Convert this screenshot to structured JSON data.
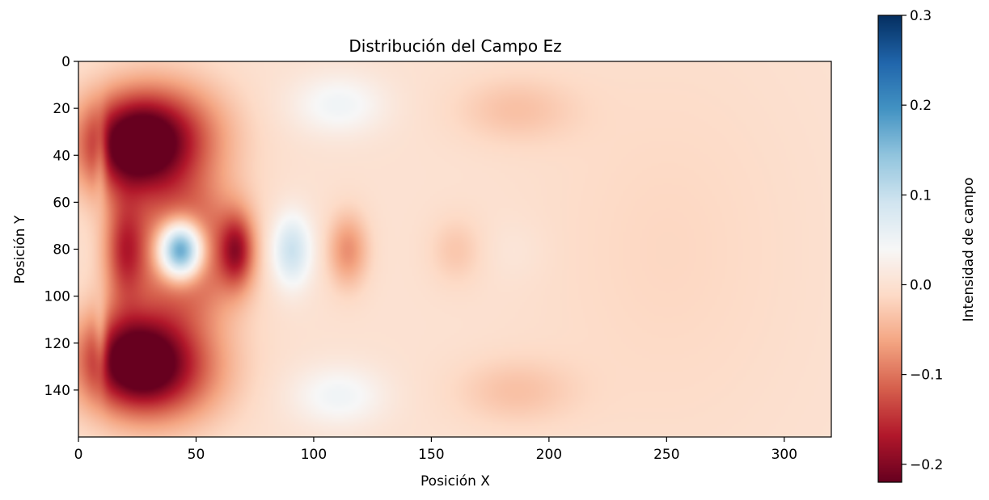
{
  "chart_data": {
    "type": "heatmap",
    "title": "Distribución del Campo Ez",
    "xlabel": "Posición X",
    "ylabel": "Posición Y",
    "colorbar_label": "Intensidad de campo",
    "colormap": "RdBu",
    "xlim": [
      0,
      320
    ],
    "ylim": [
      160,
      0
    ],
    "y_axis_inverted": true,
    "x_ticks": [
      0,
      50,
      100,
      150,
      200,
      250,
      300
    ],
    "x_tick_labels": [
      "0",
      "50",
      "100",
      "150",
      "200",
      "250",
      "300"
    ],
    "y_ticks": [
      0,
      20,
      40,
      60,
      80,
      100,
      120,
      140
    ],
    "y_tick_labels": [
      "0",
      "20",
      "40",
      "60",
      "80",
      "100",
      "120",
      "140"
    ],
    "colorbar_range": [
      -0.22,
      0.3
    ],
    "colorbar_ticks": [
      -0.2,
      -0.1,
      0.0,
      0.1,
      0.2,
      0.3
    ],
    "colorbar_tick_labels": [
      "−0.2",
      "−0.1",
      "0.0",
      "0.1",
      "0.2",
      "0.3"
    ],
    "background_value": 0.0,
    "features": [
      {
        "shape": "gaussian",
        "x": 22,
        "y": 35,
        "value": -0.22,
        "sx": 16,
        "sy": 15
      },
      {
        "shape": "gaussian",
        "x": 22,
        "y": 127,
        "value": -0.22,
        "sx": 16,
        "sy": 15
      },
      {
        "shape": "gaussian",
        "x": 40,
        "y": 30,
        "value": -0.1,
        "sx": 18,
        "sy": 16
      },
      {
        "shape": "gaussian",
        "x": 40,
        "y": 132,
        "value": -0.1,
        "sx": 18,
        "sy": 16
      },
      {
        "shape": "gaussian",
        "x": 43,
        "y": 80,
        "value": 0.34,
        "sx": 7,
        "sy": 9
      },
      {
        "shape": "gaussian",
        "x": 45,
        "y": 80,
        "value": -0.17,
        "sx": 16,
        "sy": 20
      },
      {
        "shape": "gaussian",
        "x": 19,
        "y": 80,
        "value": -0.12,
        "sx": 6,
        "sy": 16
      },
      {
        "shape": "gaussian",
        "x": 67,
        "y": 80,
        "value": -0.13,
        "sx": 5,
        "sy": 11
      },
      {
        "shape": "gaussian",
        "x": 90,
        "y": 80,
        "value": 0.1,
        "sx": 6,
        "sy": 11
      },
      {
        "shape": "gaussian",
        "x": 114,
        "y": 80,
        "value": -0.08,
        "sx": 6,
        "sy": 11
      },
      {
        "shape": "gaussian",
        "x": 110,
        "y": 18,
        "value": 0.05,
        "sx": 14,
        "sy": 9
      },
      {
        "shape": "gaussian",
        "x": 110,
        "y": 142,
        "value": 0.05,
        "sx": 14,
        "sy": 9
      },
      {
        "shape": "gaussian",
        "x": 185,
        "y": 20,
        "value": -0.035,
        "sx": 18,
        "sy": 10
      },
      {
        "shape": "gaussian",
        "x": 185,
        "y": 140,
        "value": -0.035,
        "sx": 18,
        "sy": 10
      },
      {
        "shape": "gaussian",
        "x": 160,
        "y": 80,
        "value": -0.03,
        "sx": 8,
        "sy": 10
      },
      {
        "shape": "gaussian",
        "x": 185,
        "y": 80,
        "value": 0.01,
        "sx": 10,
        "sy": 10
      },
      {
        "shape": "gaussian",
        "x": 9,
        "y": 40,
        "value": 0.06,
        "sx": 2,
        "sy": 12
      },
      {
        "shape": "gaussian",
        "x": 9,
        "y": 120,
        "value": 0.06,
        "sx": 2,
        "sy": 12
      },
      {
        "shape": "gaussian",
        "x": 250,
        "y": 80,
        "value": -0.015,
        "sx": 40,
        "sy": 60
      }
    ]
  }
}
